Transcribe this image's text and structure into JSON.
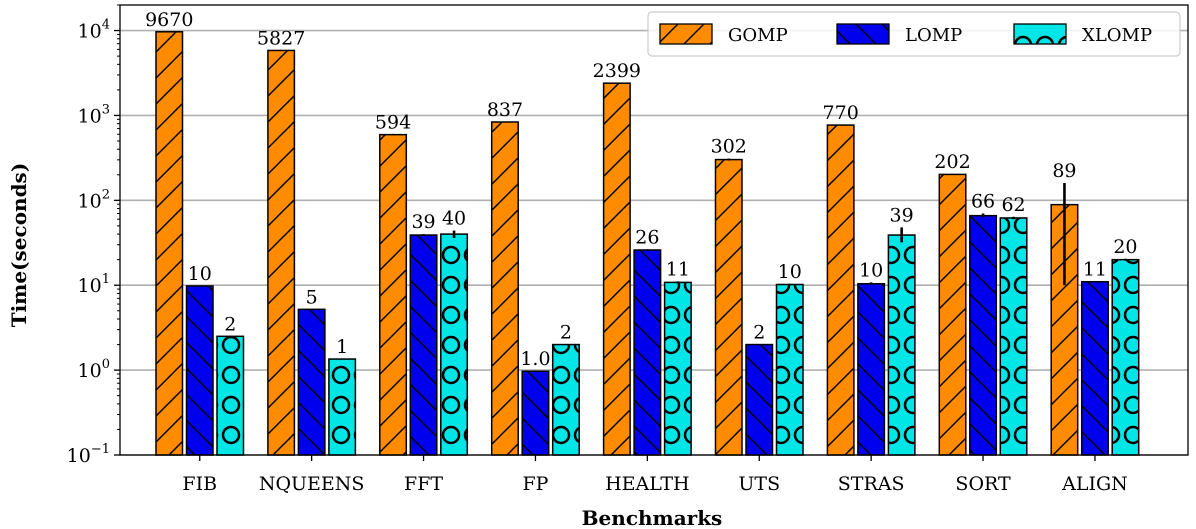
{
  "chart_data": {
    "type": "bar",
    "xlabel": "Benchmarks",
    "ylabel": "Time(seconds)",
    "yscale": "log",
    "ylim": [
      0.1,
      20000
    ],
    "yticks": [
      {
        "value": 0.1,
        "mantissa": "10",
        "exp": "−1"
      },
      {
        "value": 1,
        "mantissa": "10",
        "exp": "0"
      },
      {
        "value": 10,
        "mantissa": "10",
        "exp": "1"
      },
      {
        "value": 100,
        "mantissa": "10",
        "exp": "2"
      },
      {
        "value": 1000,
        "mantissa": "10",
        "exp": "3"
      },
      {
        "value": 10000,
        "mantissa": "10",
        "exp": "4"
      }
    ],
    "grid": "horizontal",
    "legend_position": "top-right",
    "categories": [
      "FIB",
      "NQUEENS",
      "FFT",
      "FP",
      "HEALTH",
      "UTS",
      "STRAS",
      "SORT",
      "ALIGN"
    ],
    "series": [
      {
        "name": "GOMP",
        "color": "#ff8c00",
        "pattern": "diagonal-hatch",
        "values": [
          9670,
          5827,
          594,
          837,
          2399,
          302,
          770,
          202,
          89
        ],
        "labels": [
          "9670",
          "5827",
          "594",
          "837",
          "2399",
          "302",
          "770",
          "202",
          "89"
        ],
        "error_low": [
          9670,
          5827,
          594,
          837,
          2399,
          295,
          770,
          200,
          10
        ],
        "error_high": [
          9670,
          5827,
          594,
          837,
          2399,
          310,
          770,
          205,
          160
        ]
      },
      {
        "name": "LOMP",
        "color": "#0000ee",
        "pattern": "back-diagonal-hatch",
        "values": [
          9.8,
          5.2,
          39,
          0.97,
          26,
          2.0,
          10.4,
          66,
          11
        ],
        "labels": [
          "10",
          "5",
          "39",
          "1.0",
          "26",
          "2",
          "10",
          "66",
          "11"
        ],
        "error_low": [
          9.8,
          5.2,
          38,
          0.97,
          25.5,
          2.0,
          10,
          63,
          11
        ],
        "error_high": [
          9.8,
          5.2,
          40,
          0.97,
          26.5,
          2.0,
          10.8,
          70,
          11
        ]
      },
      {
        "name": "XLOMP",
        "color": "#00e5e5",
        "pattern": "circles",
        "values": [
          2.5,
          1.35,
          40,
          2.0,
          10.8,
          10.2,
          39,
          62,
          20
        ],
        "labels": [
          "2",
          "1",
          "40",
          "2",
          "11",
          "10",
          "39",
          "62",
          "20"
        ],
        "error_low": [
          2.5,
          1.35,
          36,
          2.0,
          10.5,
          10,
          32,
          60,
          19.5
        ],
        "error_high": [
          2.5,
          1.35,
          44,
          2.0,
          11.1,
          10.4,
          48,
          64,
          20.5
        ]
      }
    ]
  }
}
